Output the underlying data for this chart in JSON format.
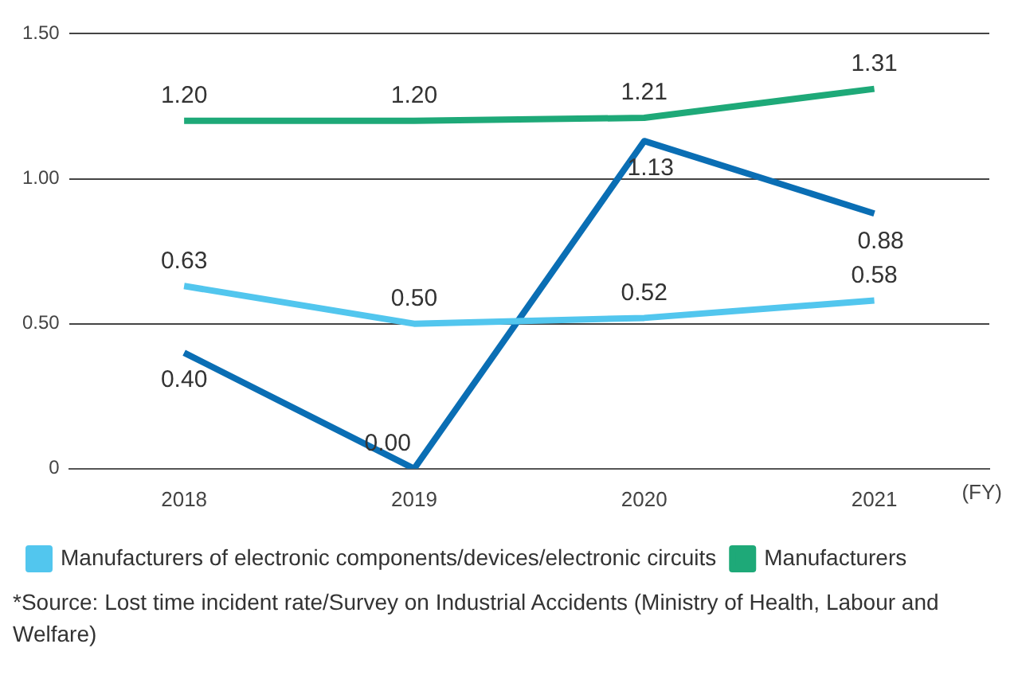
{
  "chart_data": {
    "type": "line",
    "categories": [
      "2018",
      "2019",
      "2020",
      "2021"
    ],
    "xlabel": "(FY)",
    "series": [
      {
        "color": "#0a6eb4",
        "values": [
          0.4,
          0.0,
          1.13,
          0.88
        ],
        "value_labels": [
          "0.40",
          "0.00",
          "1.13",
          "0.88"
        ]
      },
      {
        "name": "Manufacturers of electronic components/devices/electronic circuits",
        "color": "#52c6ee",
        "values": [
          0.63,
          0.5,
          0.52,
          0.58
        ],
        "value_labels": [
          "0.63",
          "0.50",
          "0.52",
          "0.58"
        ]
      },
      {
        "name": "Manufacturers",
        "color": "#1ea978",
        "values": [
          1.2,
          1.2,
          1.21,
          1.31
        ],
        "value_labels": [
          "1.20",
          "1.20",
          "1.21",
          "1.31"
        ]
      }
    ],
    "ylim": [
      0,
      1.5
    ],
    "yticks": [
      {
        "value": 0,
        "label": "0"
      },
      {
        "value": 0.5,
        "label": "0.50"
      },
      {
        "value": 1,
        "label": "1.00"
      },
      {
        "value": 1.5,
        "label": "1.50"
      }
    ],
    "grid": "y",
    "legend": "bottom",
    "marker": "none",
    "line_style": "solid",
    "annotations": [
      "*Source: Lost time incident rate/Survey on Industrial Accidents (Ministry of Health, Labour and Welfare)"
    ]
  }
}
